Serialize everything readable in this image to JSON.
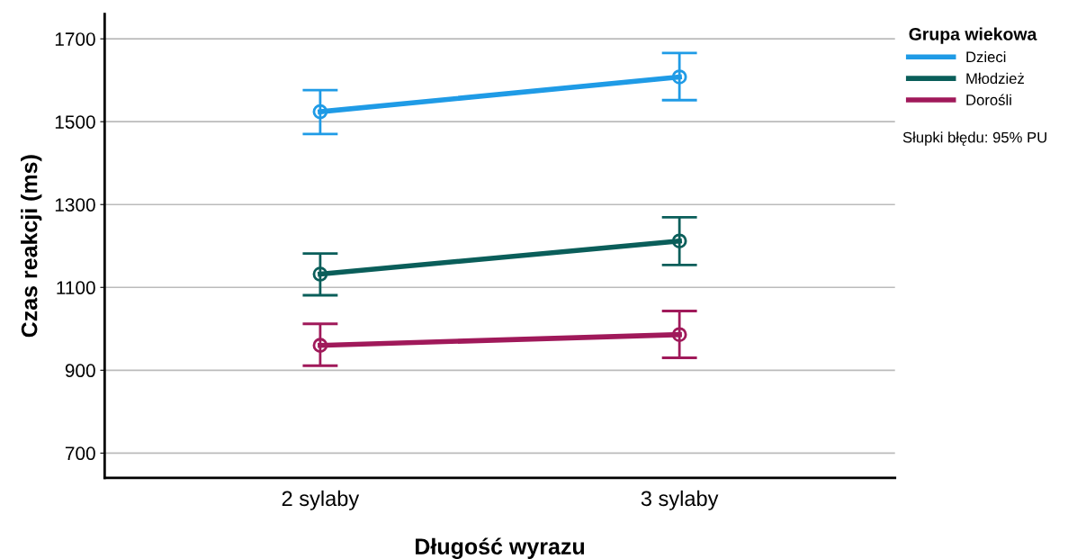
{
  "chart_data": {
    "type": "line",
    "xlabel": "Długość wyrazu",
    "ylabel": "Czas reakcji (ms)",
    "legend_title": "Grupa wiekowa",
    "categories": [
      "2 sylaby",
      "3 sylaby"
    ],
    "series": [
      {
        "name": "Dzieci",
        "color": "#1f9be6",
        "values": [
          1524,
          1608
        ],
        "errors": [
          [
            1470,
            1576
          ],
          [
            1552,
            1666
          ]
        ]
      },
      {
        "name": "Młodzież",
        "color": "#0a5e5a",
        "values": [
          1132,
          1212
        ],
        "errors": [
          [
            1081,
            1182
          ],
          [
            1154,
            1269
          ]
        ]
      },
      {
        "name": "Dorośli",
        "color": "#a0195a",
        "values": [
          960,
          986
        ],
        "errors": [
          [
            911,
            1012
          ],
          [
            930,
            1043
          ]
        ]
      }
    ],
    "ylim": [
      640,
      1760
    ],
    "yticks": [
      700,
      900,
      1100,
      1300,
      1500,
      1700
    ],
    "grid": "y",
    "legend": "top right",
    "marker": "circle",
    "line_style": "solid",
    "annotations": [
      "Słupki błędu: 95% PU"
    ]
  }
}
